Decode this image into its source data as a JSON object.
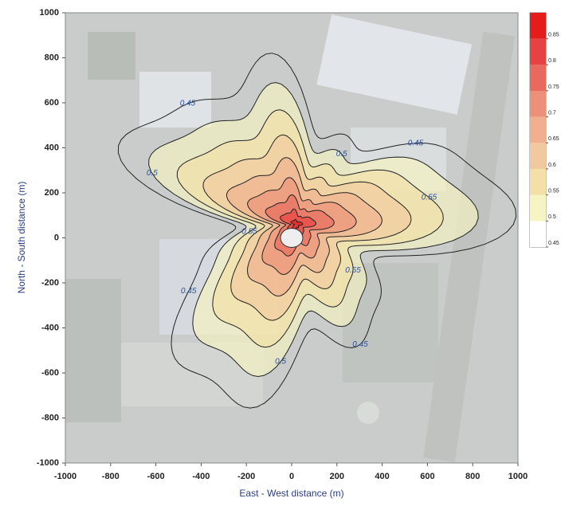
{
  "chart_data": {
    "type": "contour",
    "xlabel": "East - West distance (m)",
    "ylabel": "North - South distance (m)",
    "xlim": [
      -1000,
      1000
    ],
    "ylim": [
      -1000,
      1000
    ],
    "xticks": [
      -1000,
      -800,
      -600,
      -400,
      -200,
      0,
      200,
      400,
      600,
      800,
      1000
    ],
    "yticks": [
      -1000,
      -800,
      -600,
      -400,
      -200,
      0,
      200,
      400,
      600,
      800,
      1000
    ],
    "levels": [
      0.45,
      0.5,
      0.55,
      0.6,
      0.65,
      0.7,
      0.75,
      0.8,
      0.85
    ],
    "level_colors": [
      "#ffffff",
      "#f6f4c2",
      "#f3e0a6",
      "#f2c99e",
      "#f0b08e",
      "#ec9078",
      "#e86a5c",
      "#e64242",
      "#e41c1c"
    ],
    "colorbar": {
      "lim": [
        0.45,
        0.9
      ],
      "ticks": [
        0.45,
        0.5,
        0.55,
        0.6,
        0.65,
        0.7,
        0.75,
        0.8,
        0.85
      ]
    }
  }
}
